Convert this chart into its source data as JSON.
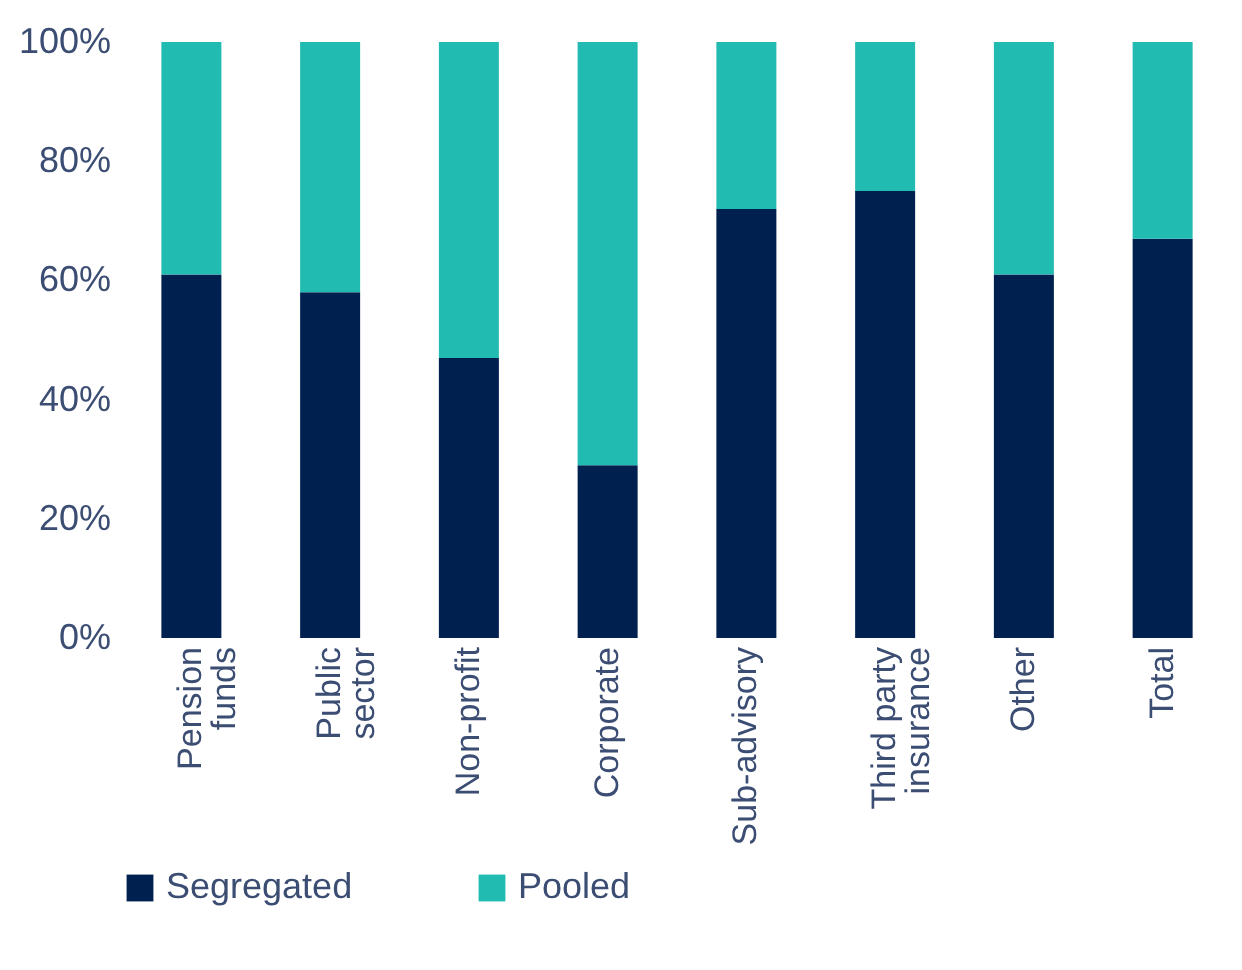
{
  "chart_data": {
    "type": "bar",
    "stacked": true,
    "categories": [
      "Pension funds",
      "Public sector",
      "Non-profit",
      "Corporate",
      "Sub-advisory",
      "Third party insurance",
      "Other",
      "Total"
    ],
    "series": [
      {
        "name": "Segregated",
        "color": "#002050",
        "values": [
          61,
          58,
          47,
          29,
          72,
          75,
          61,
          67
        ]
      },
      {
        "name": "Pooled",
        "color": "#22bbb1",
        "values": [
          39,
          42,
          53,
          71,
          28,
          25,
          39,
          33
        ]
      }
    ],
    "ylim": [
      0,
      100
    ],
    "yticks": [
      {
        "value": 0,
        "label": "0%"
      },
      {
        "value": 20,
        "label": "20%"
      },
      {
        "value": 40,
        "label": "40%"
      },
      {
        "value": 60,
        "label": "60%"
      },
      {
        "value": 80,
        "label": "80%"
      },
      {
        "value": 100,
        "label": "100%"
      }
    ],
    "grid": false,
    "legend": "bottom"
  }
}
